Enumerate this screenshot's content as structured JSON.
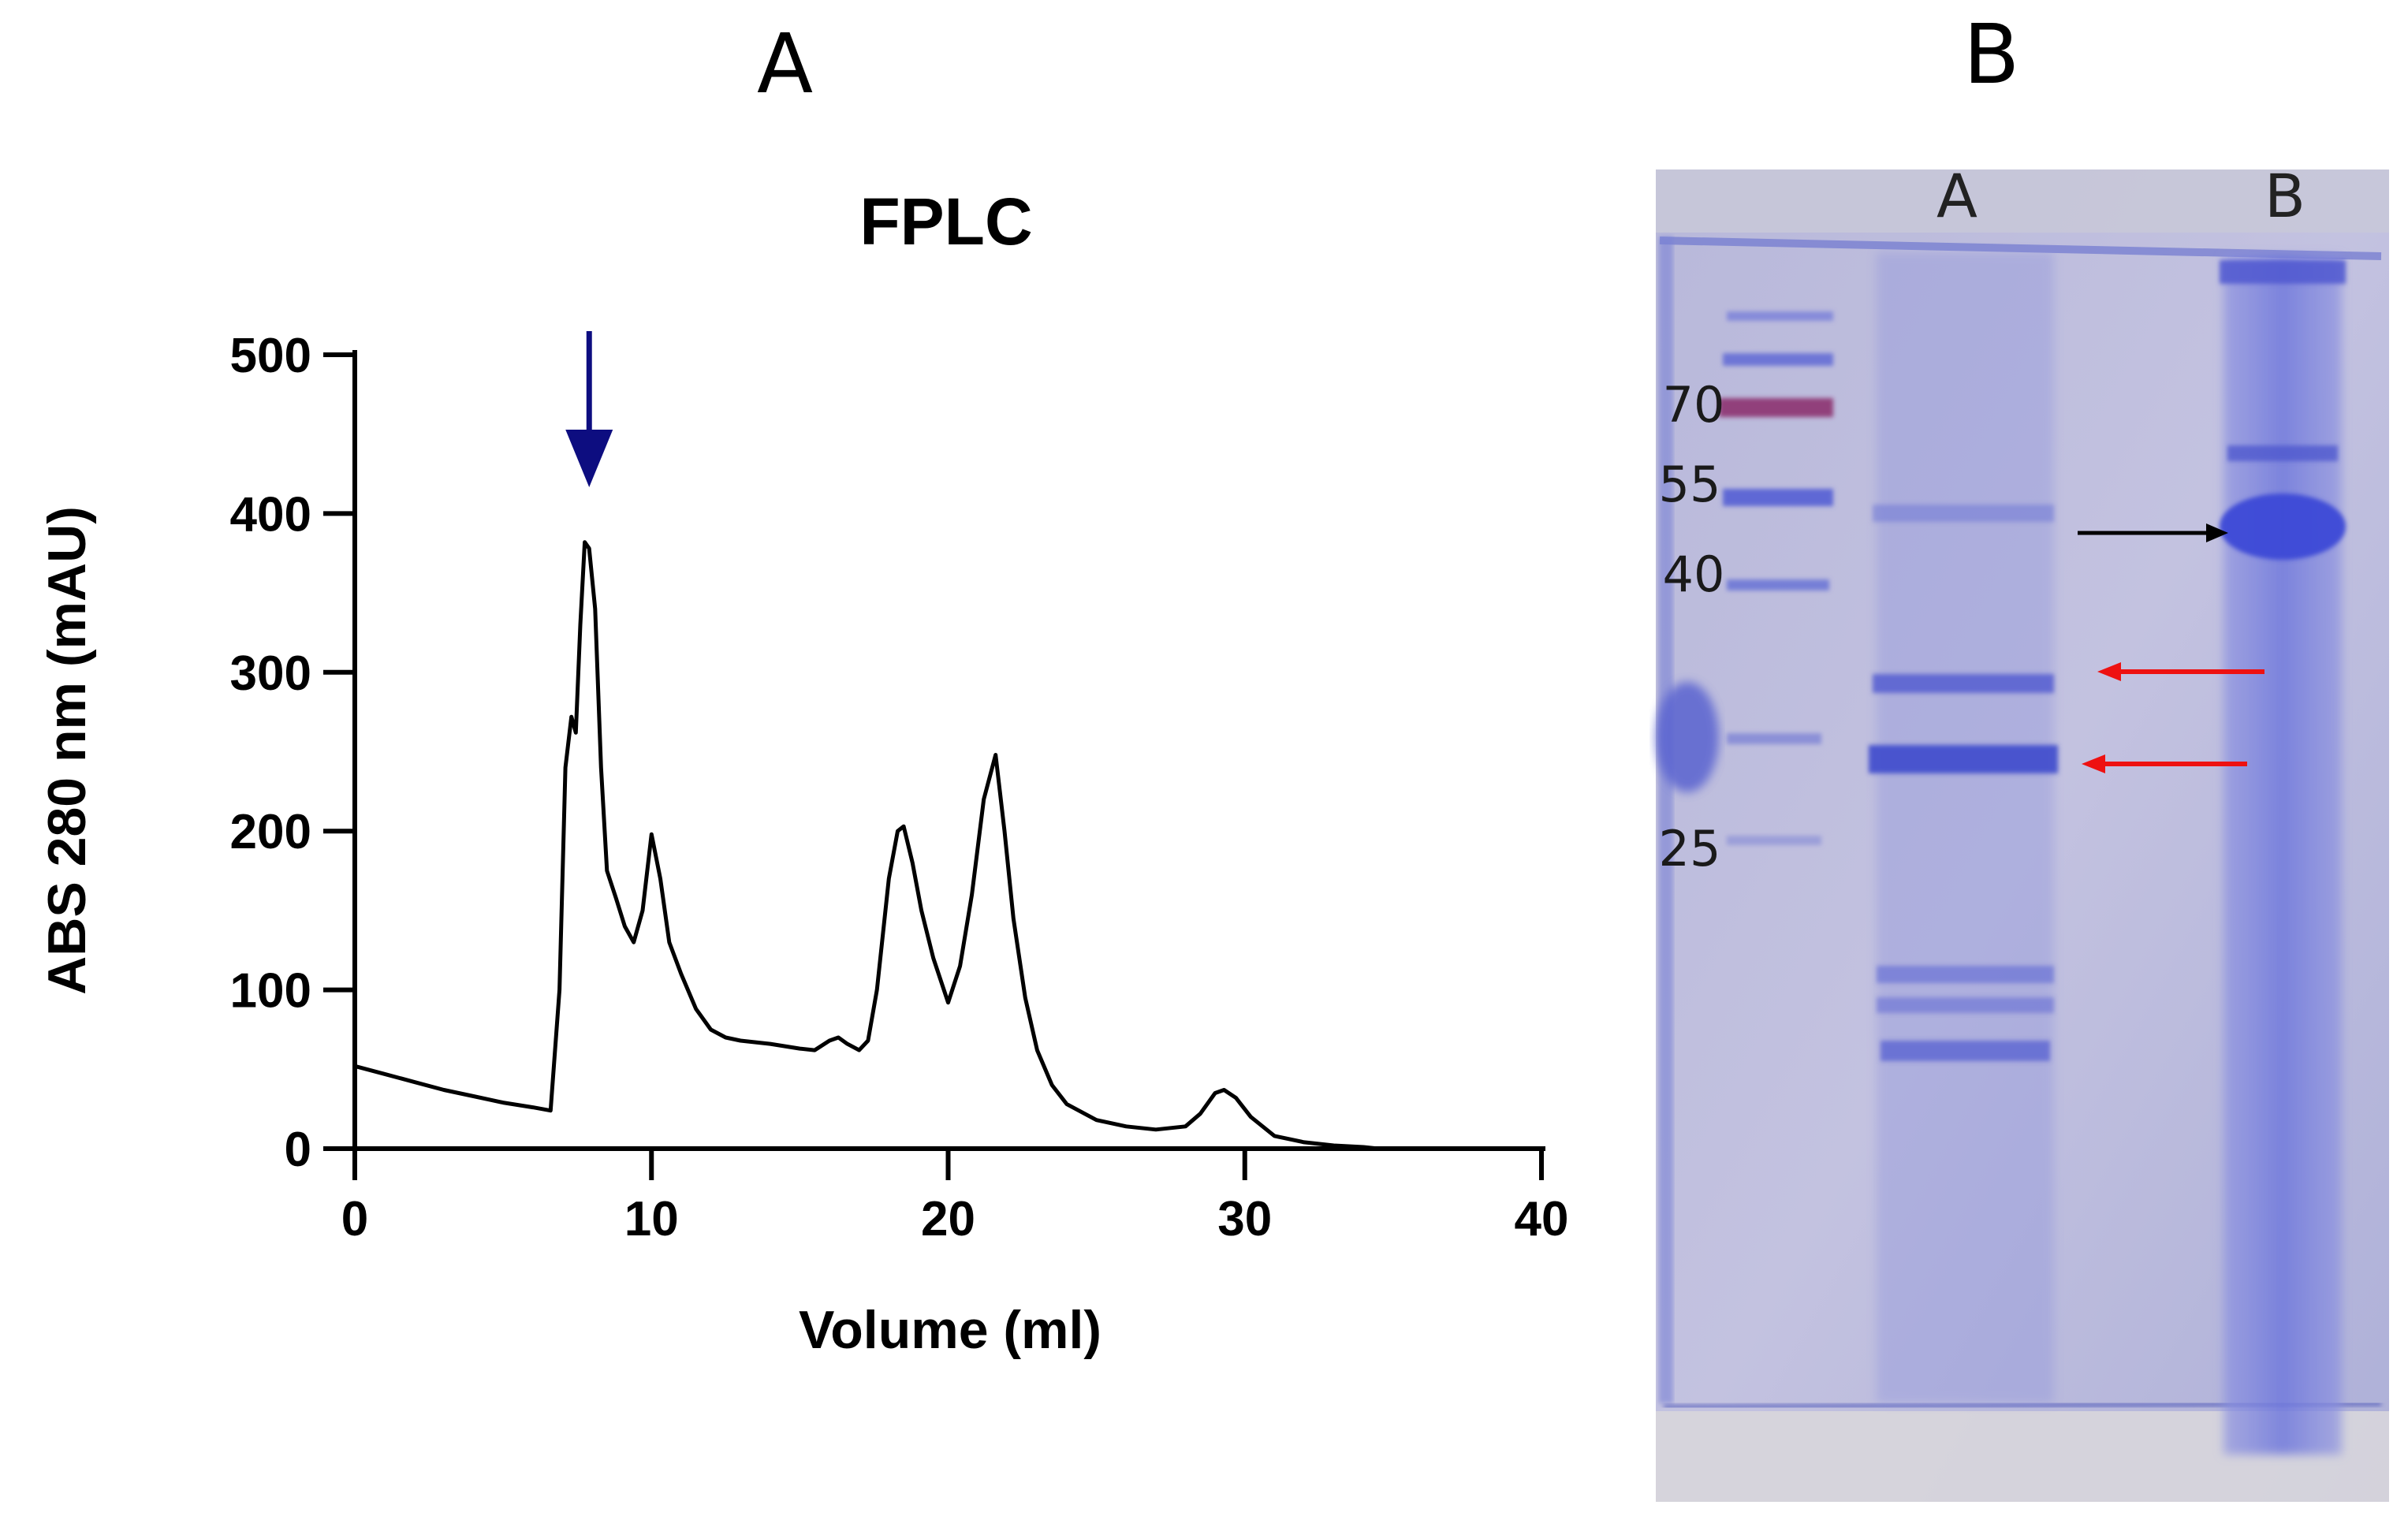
{
  "panels": {
    "a_label": "A",
    "b_label": "B"
  },
  "chart_data": {
    "type": "line",
    "title": "FPLC",
    "xlabel": "Volume (ml)",
    "ylabel": "ABS 280 nm (mAU)",
    "xlim": [
      0,
      40
    ],
    "ylim": [
      0,
      500
    ],
    "x_ticks": [
      "0",
      "10",
      "20",
      "30",
      "40"
    ],
    "y_ticks": [
      "0",
      "100",
      "200",
      "300",
      "400",
      "500"
    ],
    "grid": false,
    "line_color": "#000000",
    "annotation": {
      "type": "arrow",
      "x": 7.9,
      "color": "#0d0d80"
    },
    "series": [
      {
        "x": [
          0,
          1,
          2,
          3,
          4,
          5,
          6,
          6.6,
          6.9,
          7.1,
          7.3,
          7.45,
          7.6,
          7.75,
          7.9,
          8.1,
          8.3,
          8.5,
          8.8,
          9.1,
          9.4,
          9.7,
          10.0,
          10.3,
          10.6,
          11.0,
          11.5,
          12.0,
          12.5,
          13.0,
          14.0,
          15.0,
          15.5,
          16.0,
          16.3,
          16.6,
          17.0,
          17.3,
          17.6,
          18.0,
          18.3,
          18.5,
          18.8,
          19.1,
          19.5,
          20.0,
          20.4,
          20.8,
          21.2,
          21.6,
          21.9,
          22.2,
          22.6,
          23.0,
          23.5,
          24.0,
          25.0,
          26.0,
          27.0,
          28.0,
          28.5,
          29.0,
          29.3,
          29.7,
          30.2,
          31.0,
          32.0,
          33.0,
          34.0,
          34.5
        ],
        "y": [
          52,
          47,
          42,
          37,
          33,
          29,
          26,
          24,
          100,
          240,
          272,
          262,
          330,
          382,
          378,
          340,
          240,
          175,
          158,
          140,
          130,
          150,
          198,
          170,
          130,
          110,
          88,
          75,
          70,
          68,
          66,
          63,
          62,
          68,
          70,
          66,
          62,
          68,
          100,
          170,
          200,
          203,
          180,
          150,
          120,
          92,
          115,
          160,
          220,
          248,
          200,
          145,
          95,
          62,
          40,
          28,
          18,
          14,
          12,
          14,
          22,
          35,
          37,
          32,
          20,
          8,
          4,
          2,
          1,
          0
        ]
      }
    ]
  },
  "gel": {
    "ladder_labels": [
      "70",
      "55",
      "40",
      "25"
    ],
    "lane_labels": [
      "A",
      "B"
    ],
    "arrows": [
      {
        "color": "#000000",
        "direction": "right"
      },
      {
        "color": "#ee1111",
        "direction": "left"
      },
      {
        "color": "#ee1111",
        "direction": "left"
      }
    ]
  }
}
